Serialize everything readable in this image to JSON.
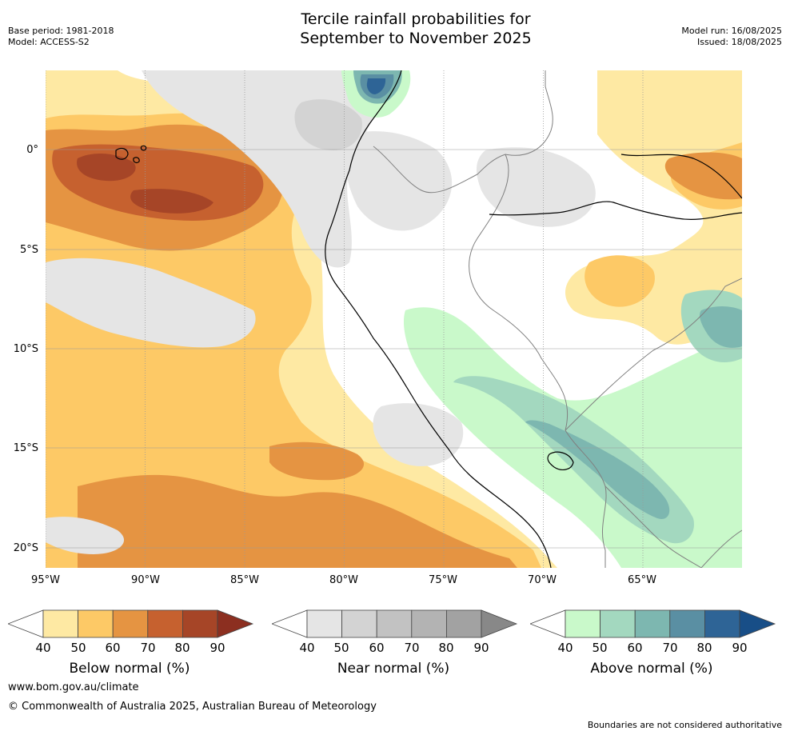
{
  "title": {
    "line1": "Tercile rainfall probabilities for",
    "line2": "September to November 2025"
  },
  "meta": {
    "base_period": "Base period: 1981-2018",
    "model": "Model: ACCESS-S2",
    "model_run": "Model run: 16/08/2025",
    "issued": "Issued: 18/08/2025"
  },
  "axes": {
    "lat_labels": [
      "0°",
      "5°S",
      "10°S",
      "15°S",
      "20°S"
    ],
    "lon_labels": [
      "95°W",
      "90°W",
      "85°W",
      "80°W",
      "75°W",
      "70°W",
      "65°W"
    ]
  },
  "colorbars": {
    "below": {
      "label": "Below normal (%)",
      "ticks": [
        "40",
        "50",
        "60",
        "70",
        "80",
        "90"
      ],
      "colors": [
        "#ffffff",
        "#fee9a3",
        "#fdc966",
        "#e59442",
        "#c6612f",
        "#a64527",
        "#8c2f20"
      ]
    },
    "near": {
      "label": "Near normal (%)",
      "ticks": [
        "40",
        "50",
        "60",
        "70",
        "80",
        "90"
      ],
      "colors": [
        "#ffffff",
        "#e5e5e5",
        "#d3d3d3",
        "#c2c2c2",
        "#b3b3b3",
        "#a2a2a2",
        "#888888"
      ]
    },
    "above": {
      "label": "Above normal (%)",
      "ticks": [
        "40",
        "50",
        "60",
        "70",
        "80",
        "90"
      ],
      "colors": [
        "#ffffff",
        "#c9f9ca",
        "#a3d8bf",
        "#7db7b0",
        "#5a8fa3",
        "#2e6496",
        "#184e87"
      ]
    }
  },
  "map_colors": {
    "below_50": "#fee9a3",
    "below_60": "#fdc966",
    "below_70": "#e59442",
    "below_80": "#c6612f",
    "below_90": "#a64527",
    "near_50": "#e5e5e5",
    "near_60": "#d3d3d3",
    "above_50": "#c9f9ca",
    "above_60": "#a3d8bf",
    "above_70": "#7db7b0",
    "above_80": "#5a8fa3",
    "above_90": "#2e6496",
    "coast": "#000000",
    "border": "#808080",
    "grid": "#999999"
  },
  "footer": {
    "url": "www.bom.gov.au/climate",
    "copyright": "© Commonwealth of Australia 2025, Australian Bureau of Meteorology",
    "disclaimer": "Boundaries are not considered authoritative"
  }
}
